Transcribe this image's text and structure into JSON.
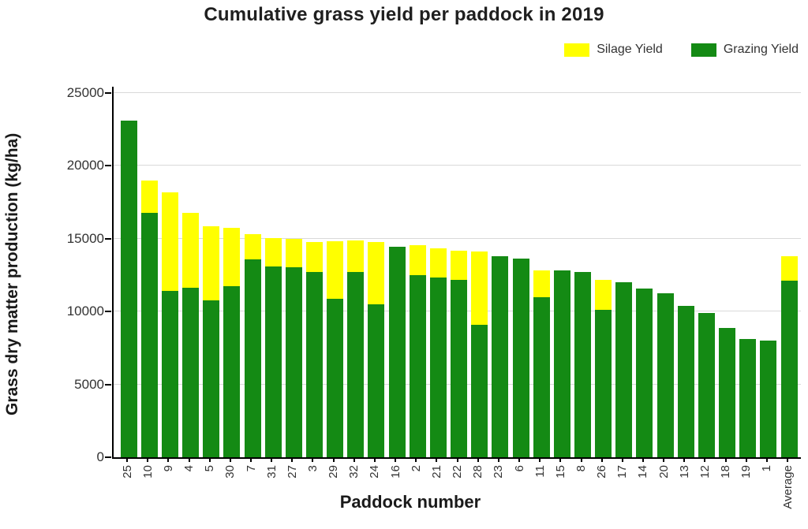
{
  "legend": {
    "items": [
      {
        "label": "Silage Yield",
        "color": "#ffff00"
      },
      {
        "label": "Grazing Yield",
        "color": "#148a14"
      }
    ]
  },
  "chart_data": {
    "type": "bar",
    "stacked": true,
    "title": "Cumulative grass yield per paddock in 2019",
    "xlabel": "Paddock number",
    "ylabel": "Grass dry matter production (kg/ha)",
    "ylim": [
      0,
      25000
    ],
    "yticks": [
      0,
      5000,
      10000,
      15000,
      20000,
      25000
    ],
    "grid": "horizontal",
    "legend_position": "top-right",
    "categories": [
      "25",
      "10",
      "9",
      "4",
      "5",
      "30",
      "7",
      "31",
      "27",
      "3",
      "29",
      "32",
      "24",
      "16",
      "2",
      "21",
      "22",
      "28",
      "23",
      "6",
      "11",
      "15",
      "8",
      "26",
      "17",
      "14",
      "20",
      "13",
      "12",
      "18",
      "19",
      "1",
      "Average"
    ],
    "series": [
      {
        "name": "Grazing Yield",
        "color": "#148a14",
        "values": [
          23100,
          16800,
          11400,
          11650,
          10750,
          11750,
          13600,
          13100,
          13050,
          12700,
          10900,
          12700,
          10500,
          14450,
          12500,
          12350,
          12200,
          9100,
          13800,
          13650,
          11000,
          12800,
          12700,
          10100,
          12000,
          11600,
          11250,
          10400,
          9900,
          8900,
          8100,
          8000,
          12100
        ]
      },
      {
        "name": "Silage Yield",
        "color": "#ffff00",
        "values": [
          0,
          2200,
          6800,
          5100,
          5100,
          4000,
          1700,
          1950,
          1950,
          2100,
          3950,
          2200,
          4300,
          0,
          2050,
          2000,
          2000,
          5000,
          0,
          0,
          1800,
          0,
          0,
          2100,
          0,
          0,
          0,
          0,
          0,
          0,
          0,
          0,
          1700
        ]
      }
    ]
  },
  "axis": {
    "tick_color": "#000000",
    "grid_color": "#d9d9d9"
  }
}
